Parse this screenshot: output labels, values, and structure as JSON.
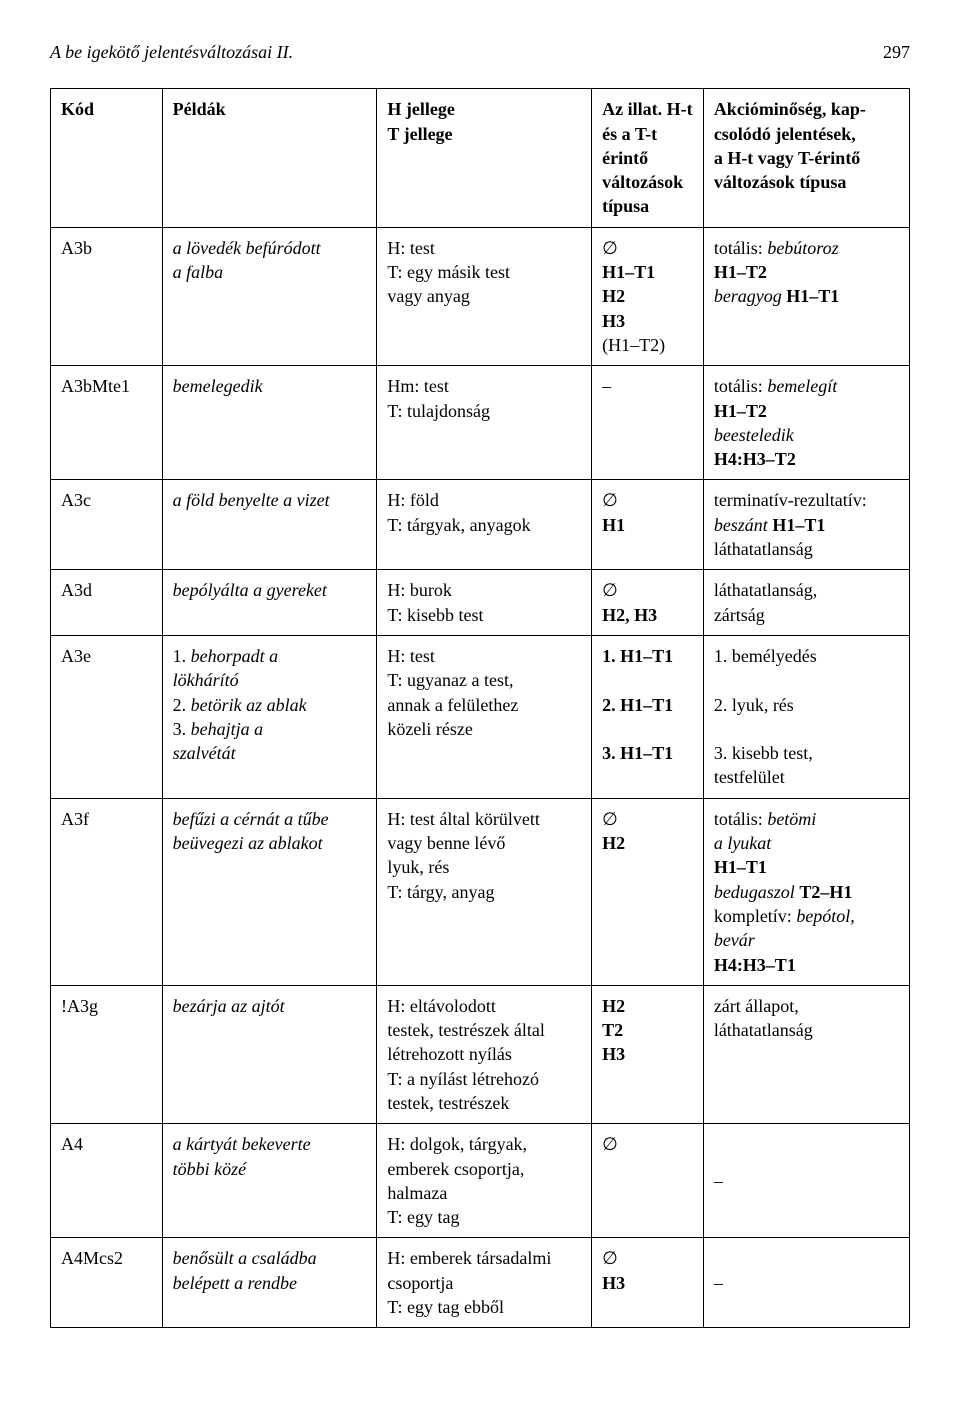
{
  "header": {
    "title_italic": "A ",
    "title_rest": "be ",
    "title_tail": "igekötő jelentésváltozásai II.",
    "pagenum": "297"
  },
  "cols": {
    "kod": "Kód",
    "peldak": "Példák",
    "hjellege": "H jellege",
    "tjellege": "T jellege",
    "illat1": "Az illat. H-t",
    "illat2": "és a T-t érintő",
    "illat3": "változások",
    "illat4": "típusa",
    "akcio1": "Akcióminőség, kap-",
    "akcio2": "csolódó jelentések,",
    "akcio3": "a H-t vagy T-érintő",
    "akcio4": "változások típusa"
  },
  "rows": {
    "r1": {
      "kod": "A3b",
      "peldak_i": "a lövedék befúródott",
      "peldak2_i": "a falba",
      "h": "H: test",
      "t": "T: egy másik test",
      "t2": "vagy anyag",
      "il0": "∅",
      "il1": "H1–T1",
      "il2": "H2",
      "il3": "H3",
      "il4": "(H1–T2)",
      "ak1a": "totális: ",
      "ak1b_i": "bebútoroz",
      "ak2": "H1–T2",
      "ak3_i_pre": "beragyog ",
      "ak3": "H1–T1"
    },
    "r2": {
      "kod": "A3bMte1",
      "peldak_i": "bemelegedik",
      "h": "Hm: test",
      "t": "T: tulajdonság",
      "il": "–",
      "ak1a": "totális: ",
      "ak1b_i": "bemelegít",
      "ak2": "H1–T2",
      "ak3_i": "beesteledik",
      "ak4": "H4:H3–T2"
    },
    "r3": {
      "kod": "A3c",
      "peldak_i": "a föld benyelte a vizet",
      "h": "H: föld",
      "t": "T: tárgyak, anyagok",
      "il0": "∅",
      "il1": "H1",
      "ak1": "terminatív-rezultatív:",
      "ak2a_i": "beszánt ",
      "ak2b": "H1–T1",
      "ak3": "láthatatlanság"
    },
    "r4": {
      "kod": "A3d",
      "peldak_i": "bepólyálta a gyereket",
      "h": "H: burok",
      "t": "T: kisebb test",
      "il0": "∅",
      "il1": "H2, H3",
      "ak1": "láthatatlanság,",
      "ak2": "zártság"
    },
    "r5": {
      "kod": "A3e",
      "p1a": "1. ",
      "p1b_i": "behorpadt a",
      "p1c_i": "lökhárító",
      "p2a": "2. ",
      "p2b_i": "betörik az ablak",
      "p3a": "3. ",
      "p3b_i": "behajtja a",
      "p3c_i": "szalvétát",
      "h": "H: test",
      "t1": "T: ugyanaz a test,",
      "t2": "annak a felülethez",
      "t3": "közeli része",
      "il1": "1. H1–T1",
      "il2": "2. H1–T1",
      "il3": "3. H1–T1",
      "ak1": "1. bemélyedés",
      "ak2": "2. lyuk, rés",
      "ak3": "3. kisebb test,",
      "ak4": "testfelület"
    },
    "r6": {
      "kod": "A3f",
      "p1_i": "befűzi a cérnát a tűbe",
      "p2_i": "beüvegezi az ablakot",
      "h1": "H: test által körülvett",
      "h2": "vagy benne lévő",
      "h3": "lyuk, rés",
      "t": "T: tárgy, anyag",
      "il0": "∅",
      "il1": "H2",
      "ak1a": "totális: ",
      "ak1b_i": "betömi",
      "ak1c_i": "a lyukat",
      "ak2": "H1–T1",
      "ak3a_i": "bedugaszol ",
      "ak3b": "T2–H1",
      "ak4a": "kompletív: ",
      "ak4b_i": "bepótol,",
      "ak4c_i": "bevár",
      "ak5": "H4:H3–T1"
    },
    "r7": {
      "kod": "!A3g",
      "peldak_i": "bezárja az ajtót",
      "h1": "H: eltávolodott",
      "h2": "testek, testrészek által",
      "h3": "létrehozott nyílás",
      "t1": "T: a nyílást létrehozó",
      "t2": "testek, testrészek",
      "il1": "H2",
      "il2": "T2",
      "il3": "H3",
      "ak1": "zárt állapot,",
      "ak2": "láthatatlanság"
    },
    "r8": {
      "kod": "A4",
      "p1_i": "a kártyát bekeverte",
      "p2_i": "többi közé",
      "h1": "H: dolgok, tárgyak,",
      "h2": "emberek csoportja,",
      "h3": "halmaza",
      "t": "T: egy tag",
      "il": "∅",
      "ak": "–"
    },
    "r9": {
      "kod": "A4Mcs2",
      "p1_i": "benősült a családba",
      "p2_i": "belépett a rendbe",
      "h1": "H: emberek társadalmi",
      "h2": "csoportja",
      "t": "T: egy tag ebből",
      "il0": "∅",
      "il1": "H3",
      "ak": "–"
    }
  }
}
